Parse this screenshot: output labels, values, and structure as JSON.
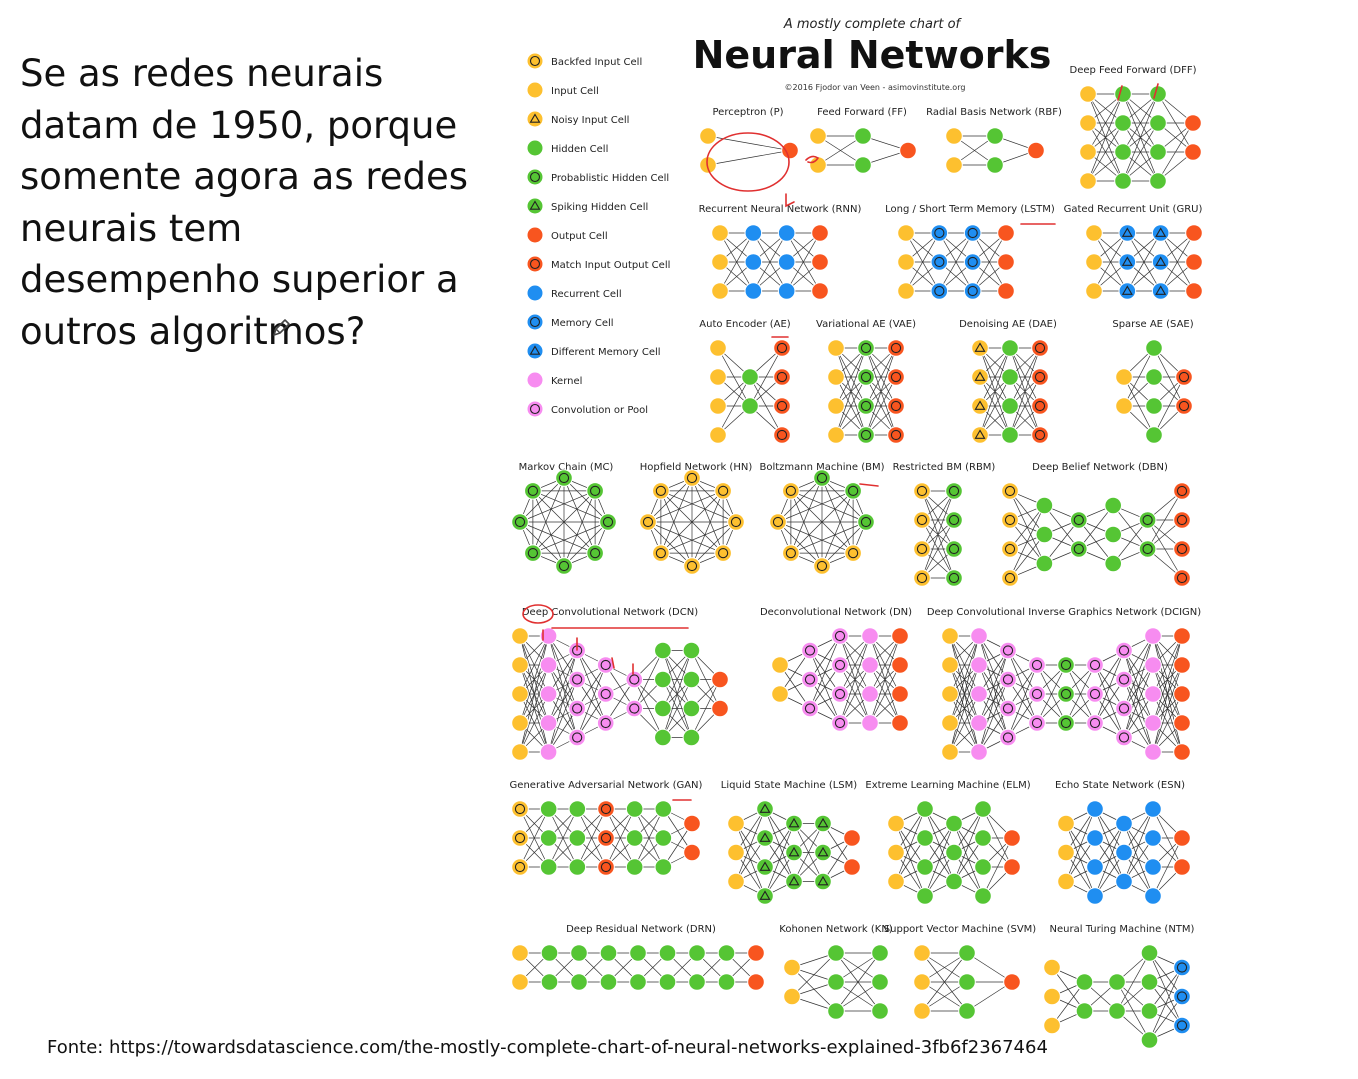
{
  "slide": {
    "question": "Se as redes neurais datam de 1950, porque somente agora as redes neurais tem desempenho superior a outros algoritmos?",
    "source": "Fonte: https://towardsdatascience.com/the-mostly-complete-chart-of-neural-networks-explained-3fb6f2367464"
  },
  "chart": {
    "subtitle": "A mostly complete chart of",
    "title": "Neural Networks",
    "credit": "©2016 Fjodor van Veen - asimovinstitute.org",
    "legend": [
      {
        "label": "Backfed Input Cell",
        "fill": "#fdc02f",
        "mark": "ring"
      },
      {
        "label": "Input Cell",
        "fill": "#fdc02f",
        "mark": "none"
      },
      {
        "label": "Noisy Input Cell",
        "fill": "#fdc02f",
        "mark": "tri"
      },
      {
        "label": "Hidden Cell",
        "fill": "#55c534",
        "mark": "none"
      },
      {
        "label": "Probablistic Hidden Cell",
        "fill": "#55c534",
        "mark": "ring"
      },
      {
        "label": "Spiking Hidden Cell",
        "fill": "#55c534",
        "mark": "tri"
      },
      {
        "label": "Output Cell",
        "fill": "#f8551f",
        "mark": "none"
      },
      {
        "label": "Match Input Output Cell",
        "fill": "#f8551f",
        "mark": "ring"
      },
      {
        "label": "Recurrent Cell",
        "fill": "#1f8ef1",
        "mark": "none"
      },
      {
        "label": "Memory Cell",
        "fill": "#1f8ef1",
        "mark": "ring"
      },
      {
        "label": "Different Memory Cell",
        "fill": "#1f8ef1",
        "mark": "tri"
      },
      {
        "label": "Kernel",
        "fill": "#f78cf0",
        "mark": "none"
      },
      {
        "label": "Convolution or Pool",
        "fill": "#f78cf0",
        "mark": "ring"
      }
    ],
    "networks": [
      {
        "label": "Perceptron (P)",
        "layers": [
          [
            "Y",
            "Y"
          ],
          [
            "O"
          ]
        ]
      },
      {
        "label": "Feed Forward (FF)",
        "layers": [
          [
            "Y",
            "Y"
          ],
          [
            "G",
            "G"
          ],
          [
            "O"
          ]
        ]
      },
      {
        "label": "Radial Basis Network (RBF)",
        "layers": [
          [
            "Y",
            "Y"
          ],
          [
            "G",
            "G"
          ],
          [
            "O"
          ]
        ]
      },
      {
        "label": "Deep Feed Forward (DFF)",
        "layers": [
          [
            "Y",
            "Y",
            "Y",
            "Y"
          ],
          [
            "G",
            "G",
            "G",
            "G"
          ],
          [
            "G",
            "G",
            "G",
            "G"
          ],
          [
            "O",
            "O"
          ]
        ]
      },
      {
        "label": "Recurrent Neural Network (RNN)",
        "layers": [
          [
            "Y",
            "Y",
            "Y"
          ],
          [
            "B",
            "B",
            "B"
          ],
          [
            "B",
            "B",
            "B"
          ],
          [
            "O",
            "O",
            "O"
          ]
        ]
      },
      {
        "label": "Long / Short Term Memory (LSTM)",
        "layers": [
          [
            "Y",
            "Y",
            "Y"
          ],
          [
            "Bm",
            "Bm",
            "Bm"
          ],
          [
            "Bm",
            "Bm",
            "Bm"
          ],
          [
            "O",
            "O",
            "O"
          ]
        ]
      },
      {
        "label": "Gated Recurrent Unit (GRU)",
        "layers": [
          [
            "Y",
            "Y",
            "Y"
          ],
          [
            "Bt",
            "Bt",
            "Bt"
          ],
          [
            "Bt",
            "Bt",
            "Bt"
          ],
          [
            "O",
            "O",
            "O"
          ]
        ]
      },
      {
        "label": "Auto Encoder (AE)",
        "layers": [
          [
            "Y",
            "Y",
            "Y",
            "Y"
          ],
          [
            "G",
            "G"
          ],
          [
            "Om",
            "Om",
            "Om",
            "Om"
          ]
        ]
      },
      {
        "label": "Variational AE (VAE)",
        "layers": [
          [
            "Y",
            "Y",
            "Y",
            "Y"
          ],
          [
            "Gp",
            "Gp",
            "Gp",
            "Gp"
          ],
          [
            "Om",
            "Om",
            "Om",
            "Om"
          ]
        ]
      },
      {
        "label": "Denoising AE (DAE)",
        "layers": [
          [
            "Yt",
            "Yt",
            "Yt",
            "Yt"
          ],
          [
            "G",
            "G",
            "G",
            "G"
          ],
          [
            "Om",
            "Om",
            "Om",
            "Om"
          ]
        ]
      },
      {
        "label": "Sparse AE (SAE)",
        "layers": [
          [
            "Y",
            "Y"
          ],
          [
            "G",
            "G",
            "G",
            "G"
          ],
          [
            "Om",
            "Om"
          ]
        ]
      },
      {
        "label": "Markov Chain (MC)",
        "ring": 8,
        "cell": "Gp"
      },
      {
        "label": "Hopfield Network (HN)",
        "ring": 8,
        "cell": "Yb"
      },
      {
        "label": "Boltzmann Machine (BM)",
        "ring": 8,
        "cell": "mix"
      },
      {
        "label": "Restricted BM (RBM)",
        "layers": [
          [
            "Yb",
            "Yb",
            "Yb",
            "Yb"
          ],
          [
            "Gp",
            "Gp",
            "Gp",
            "Gp"
          ]
        ]
      },
      {
        "label": "Deep Belief Network (DBN)",
        "layers": [
          [
            "Yb",
            "Yb",
            "Yb",
            "Yb"
          ],
          [
            "G",
            "G",
            "G"
          ],
          [
            "Gp",
            "Gp"
          ],
          [
            "G",
            "G",
            "G"
          ],
          [
            "Gp",
            "Gp"
          ],
          [
            "Om",
            "Om",
            "Om",
            "Om"
          ]
        ]
      },
      {
        "label": "Deep Convolutional Network (DCN)",
        "layers": [
          [
            "Y",
            "Y",
            "Y",
            "Y",
            "Y"
          ],
          [
            "K",
            "K",
            "K",
            "K",
            "K"
          ],
          [
            "Kc",
            "Kc",
            "Kc",
            "Kc"
          ],
          [
            "Kc",
            "Kc",
            "Kc"
          ],
          [
            "Kc",
            "Kc"
          ],
          [
            "G",
            "G",
            "G",
            "G"
          ],
          [
            "G",
            "G",
            "G",
            "G"
          ],
          [
            "O",
            "O"
          ]
        ]
      },
      {
        "label": "Deconvolutional Network (DN)",
        "layers": [
          [
            "Y",
            "Y"
          ],
          [
            "Kc",
            "Kc",
            "Kc"
          ],
          [
            "Kc",
            "Kc",
            "Kc",
            "Kc"
          ],
          [
            "K",
            "K",
            "K",
            "K"
          ],
          [
            "O",
            "O",
            "O",
            "O"
          ]
        ]
      },
      {
        "label": "Deep Convolutional Inverse Graphics Network (DCIGN)",
        "layers": [
          [
            "Y",
            "Y",
            "Y",
            "Y",
            "Y"
          ],
          [
            "K",
            "K",
            "K",
            "K",
            "K"
          ],
          [
            "Kc",
            "Kc",
            "Kc",
            "Kc"
          ],
          [
            "Kc",
            "Kc",
            "Kc"
          ],
          [
            "Gp",
            "Gp",
            "Gp"
          ],
          [
            "Kc",
            "Kc",
            "Kc"
          ],
          [
            "Kc",
            "Kc",
            "Kc",
            "Kc"
          ],
          [
            "K",
            "K",
            "K",
            "K",
            "K"
          ],
          [
            "O",
            "O",
            "O",
            "O",
            "O"
          ]
        ]
      },
      {
        "label": "Generative Adversarial Network (GAN)",
        "layers": [
          [
            "Yb",
            "Yb",
            "Yb"
          ],
          [
            "G",
            "G",
            "G"
          ],
          [
            "G",
            "G",
            "G"
          ],
          [
            "Om",
            "Om",
            "Om"
          ],
          [
            "G",
            "G",
            "G"
          ],
          [
            "G",
            "G",
            "G"
          ],
          [
            "O",
            "O"
          ]
        ]
      },
      {
        "label": "Liquid State Machine (LSM)",
        "layers": [
          [
            "Y",
            "Y",
            "Y"
          ],
          [
            "Gt",
            "Gt",
            "Gt",
            "Gt"
          ],
          [
            "Gt",
            "Gt",
            "Gt"
          ],
          [
            "Gt",
            "Gt",
            "Gt"
          ],
          [
            "O",
            "O"
          ]
        ]
      },
      {
        "label": "Extreme Learning Machine (ELM)",
        "layers": [
          [
            "Y",
            "Y",
            "Y"
          ],
          [
            "G",
            "G",
            "G",
            "G"
          ],
          [
            "G",
            "G",
            "G"
          ],
          [
            "G",
            "G",
            "G",
            "G"
          ],
          [
            "O",
            "O"
          ]
        ]
      },
      {
        "label": "Echo State Network (ESN)",
        "layers": [
          [
            "Y",
            "Y",
            "Y"
          ],
          [
            "B",
            "B",
            "B",
            "B"
          ],
          [
            "B",
            "B",
            "B"
          ],
          [
            "B",
            "B",
            "B",
            "B"
          ],
          [
            "O",
            "O"
          ]
        ]
      },
      {
        "label": "Deep Residual Network (DRN)",
        "layers": [
          [
            "Y",
            "Y"
          ],
          [
            "G",
            "G"
          ],
          [
            "G",
            "G"
          ],
          [
            "G",
            "G"
          ],
          [
            "G",
            "G"
          ],
          [
            "G",
            "G"
          ],
          [
            "G",
            "G"
          ],
          [
            "G",
            "G"
          ],
          [
            "O",
            "O"
          ]
        ]
      },
      {
        "label": "Kohonen Network (KN)",
        "layers": [
          [
            "Y",
            "Y"
          ],
          [
            "G",
            "G",
            "G"
          ],
          [
            "G",
            "G",
            "G"
          ]
        ]
      },
      {
        "label": "Support Vector Machine (SVM)",
        "layers": [
          [
            "Y",
            "Y",
            "Y"
          ],
          [
            "G",
            "G",
            "G"
          ],
          [
            "O"
          ]
        ]
      },
      {
        "label": "Neural Turing Machine (NTM)",
        "layers": [
          [
            "Y",
            "Y",
            "Y"
          ],
          [
            "G",
            "G"
          ],
          [
            "G",
            "G"
          ],
          [
            "G",
            "G",
            "G",
            "G"
          ],
          [
            "Bm",
            "Bm",
            "Bm"
          ]
        ]
      }
    ]
  }
}
